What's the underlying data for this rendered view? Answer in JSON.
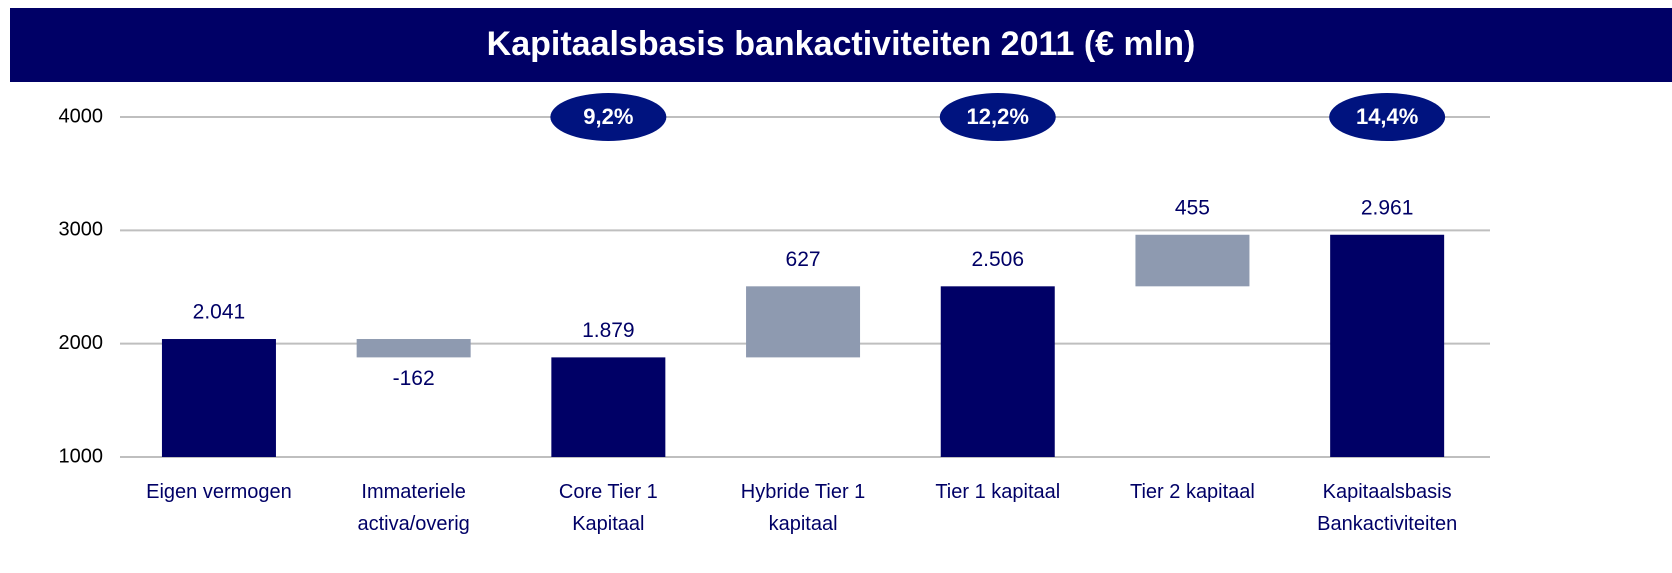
{
  "chart_data": {
    "type": "waterfall",
    "title": "Kapitaalsbasis bankactiviteiten 2011 (€ mln)",
    "categories": [
      "Eigen vermogen",
      "Immateriele\nactiva/overig",
      "Core Tier 1\nKapitaal",
      "Hybride Tier 1\nkapitaal",
      "Tier 1 kapitaal",
      "Tier 2 kapitaal",
      "Kapitaalsbasis\nBankactiviteiten"
    ],
    "values": [
      2041,
      -162,
      1879,
      627,
      2506,
      455,
      2961
    ],
    "value_labels": [
      "2.041",
      "-162",
      "1.879",
      "627",
      "2.506",
      "455",
      "2.961"
    ],
    "measures": [
      "absolute",
      "relative",
      "absolute",
      "relative",
      "absolute",
      "relative",
      "absolute"
    ],
    "colors": {
      "absolute": "#000066",
      "relative": "#8e9ab0"
    },
    "annotations": [
      null,
      null,
      "9,2%",
      null,
      "12,2%",
      null,
      "14,4%"
    ],
    "ylim": [
      1000,
      4000
    ],
    "yticks": [
      1000,
      2000,
      3000,
      4000
    ],
    "grid": true
  }
}
